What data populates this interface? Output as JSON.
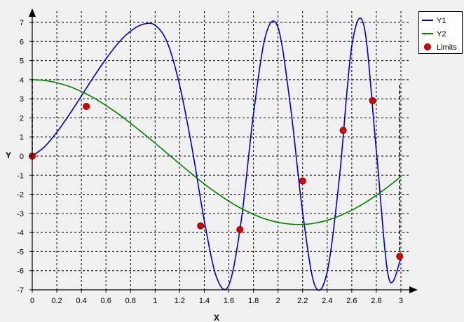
{
  "chart_data": {
    "type": "line",
    "title": "",
    "xlabel": "X",
    "ylabel": "Y",
    "xlim": [
      0,
      3
    ],
    "ylim": [
      -7,
      7
    ],
    "xticks": [
      0,
      0.2,
      0.4,
      0.6,
      0.8,
      1,
      1.2,
      1.4,
      1.6,
      1.8,
      2,
      2.2,
      2.4,
      2.6,
      2.8,
      3
    ],
    "xtick_labels": [
      "0",
      "0.2",
      "0.4",
      "0.6",
      "0.8",
      "1",
      "1.2",
      "1.4",
      "1.6",
      "1.8",
      "2",
      "2.2",
      "2.4",
      "2.6",
      "2.8",
      "3"
    ],
    "yticks": [
      -7,
      -6,
      -5,
      -4,
      -3,
      -2,
      -1,
      0,
      1,
      2,
      3,
      4,
      5,
      6,
      7
    ],
    "ytick_labels": [
      "-7",
      "-6",
      "-5",
      "-4",
      "-3",
      "-2",
      "-1",
      "0",
      "1",
      "2",
      "3",
      "4",
      "5",
      "6",
      "7"
    ],
    "grid": true,
    "legend_position": "top-right",
    "series": [
      {
        "name": "Y1",
        "color": "#0000b4",
        "x": [
          0,
          0.1,
          0.2,
          0.3,
          0.4,
          0.5,
          0.6,
          0.7,
          0.8,
          0.9,
          1.0,
          1.1,
          1.2,
          1.3,
          1.4,
          1.5,
          1.6,
          1.7,
          1.8,
          1.9,
          2.0,
          2.1,
          2.2,
          2.3,
          2.4,
          2.5,
          2.6,
          2.7,
          2.8,
          2.9,
          3.0
        ],
        "y": [
          0,
          0.49,
          1.25,
          2.16,
          3.15,
          4.15,
          5.09,
          5.92,
          6.54,
          6.9,
          6.85,
          5.93,
          3.69,
          0.43,
          -3.38,
          -6.35,
          -6.75,
          -3.4,
          2.19,
          6.34,
          6.73,
          2.67,
          -2.94,
          -6.78,
          -6.05,
          -1.1,
          5.76,
          6.8,
          0.28,
          -6.36,
          -5.35
        ]
      },
      {
        "name": "Y2",
        "color": "#008000",
        "x": [
          0,
          0.1,
          0.2,
          0.3,
          0.4,
          0.5,
          0.6,
          0.7,
          0.8,
          0.9,
          1.0,
          1.1,
          1.2,
          1.3,
          1.4,
          1.5,
          1.6,
          1.7,
          1.8,
          1.9,
          2.0,
          2.1,
          2.2,
          2.3,
          2.4,
          2.5,
          2.6,
          2.7,
          2.8,
          2.9,
          3.0
        ],
        "y": [
          4,
          3.96,
          3.84,
          3.65,
          3.38,
          3.05,
          2.65,
          2.21,
          1.72,
          1.21,
          0.68,
          0.13,
          -0.41,
          -0.94,
          -1.46,
          -1.93,
          -2.36,
          -2.74,
          -3.05,
          -3.3,
          -3.47,
          -3.56,
          -3.58,
          -3.51,
          -3.36,
          -3.13,
          -2.83,
          -2.47,
          -2.05,
          -1.58,
          -1.07
        ]
      }
    ],
    "limits": {
      "name": "Limits",
      "color": "#e00000",
      "x": [
        0,
        0.44,
        1.37,
        1.69,
        2.2,
        2.53,
        2.77,
        2.99
      ],
      "y": [
        0,
        2.6,
        -3.65,
        -3.85,
        -1.3,
        1.35,
        2.9,
        -5.25
      ]
    },
    "boundaries": [
      {
        "x": 0,
        "y_from": 0,
        "y_to": 4
      },
      {
        "x": 2.99,
        "y_from": -5.25,
        "y_to": 3.83
      }
    ]
  }
}
